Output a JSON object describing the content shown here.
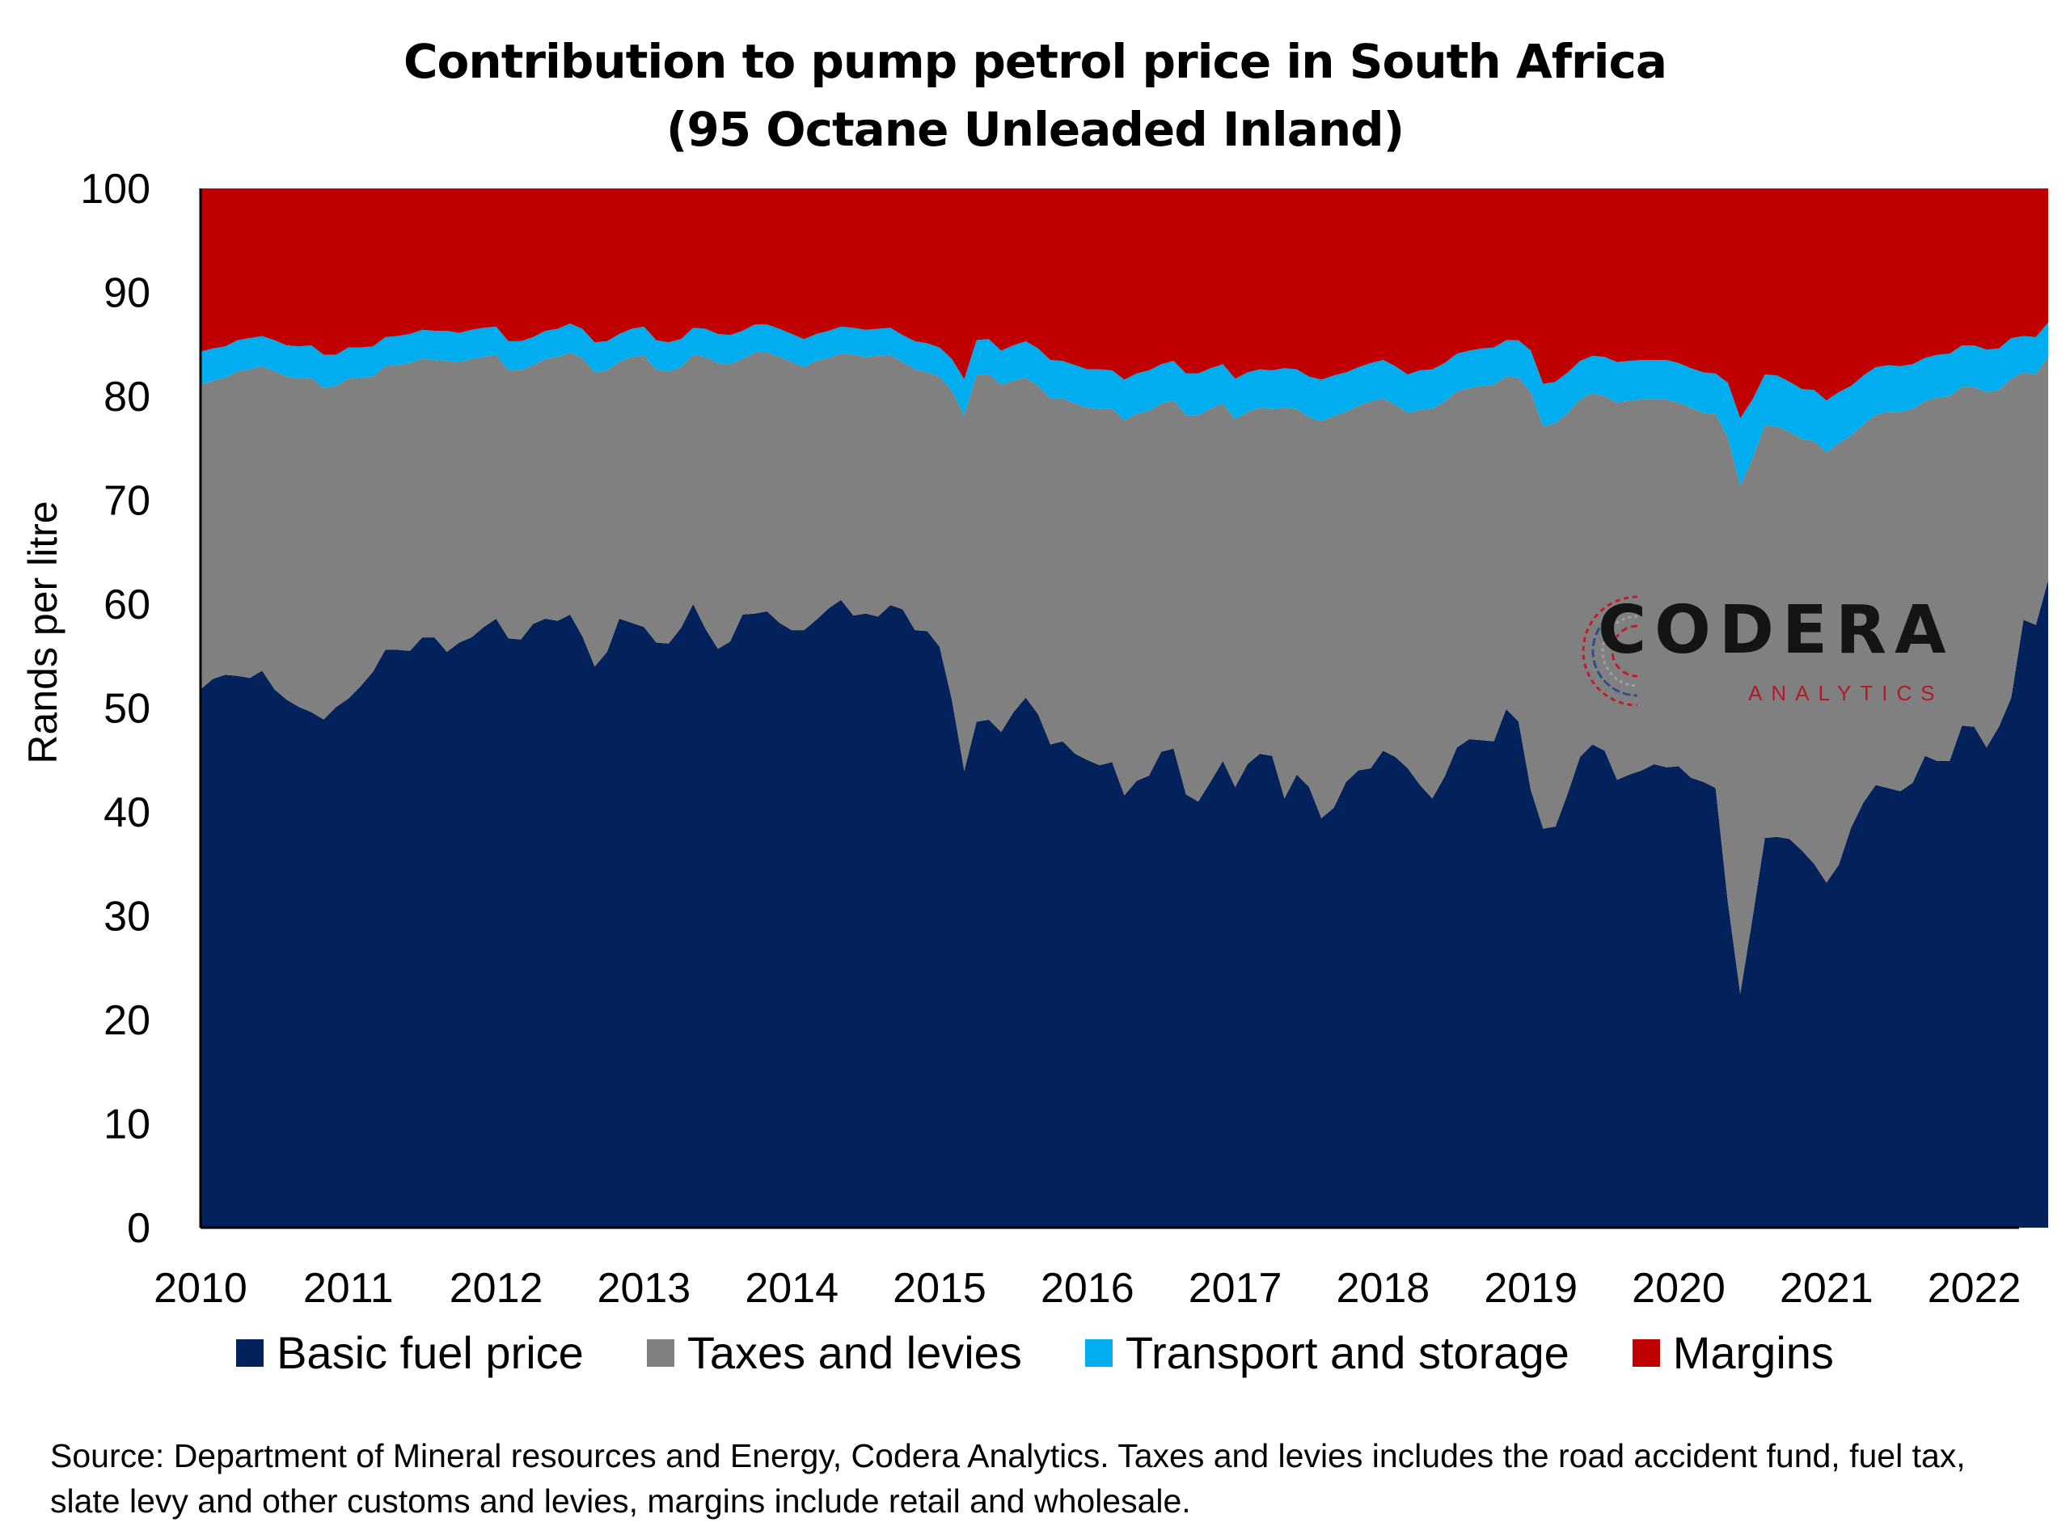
{
  "chart_data": {
    "type": "area",
    "title": "Contribution to pump petrol price in South Africa",
    "subtitle": "(95 Octane Unleaded Inland)",
    "ylabel": "Rands per litre",
    "xlabel": "",
    "ylim": [
      0,
      100
    ],
    "yticks": [
      "0",
      "10",
      "20",
      "30",
      "40",
      "50",
      "60",
      "70",
      "80",
      "90",
      "100"
    ],
    "xticks": [
      "2010",
      "2011",
      "2012",
      "2013",
      "2014",
      "2015",
      "2016",
      "2017",
      "2018",
      "2019",
      "2020",
      "2021",
      "2022"
    ],
    "x_start": 2010,
    "x_step_months": 1,
    "stacked": true,
    "stacked_as_percent": true,
    "legend_position": "bottom",
    "grid": false,
    "series": [
      {
        "name": "Basic fuel price",
        "color": "#03215a",
        "values": [
          51.8,
          52.8,
          53.2,
          53.1,
          52.9,
          53.6,
          51.8,
          50.8,
          50.1,
          49.6,
          48.9,
          50.1,
          50.9,
          52.1,
          53.5,
          55.6,
          55.6,
          55.5,
          56.8,
          56.8,
          55.4,
          56.3,
          56.8,
          57.8,
          58.6,
          56.7,
          56.6,
          58.1,
          58.6,
          58.4,
          59.0,
          56.9,
          54.0,
          55.4,
          58.6,
          58.2,
          57.8,
          56.3,
          56.2,
          57.7,
          60.0,
          57.6,
          55.7,
          56.4,
          59.0,
          59.1,
          59.3,
          58.2,
          57.5,
          57.5,
          58.5,
          59.6,
          60.4,
          58.9,
          59.1,
          58.8,
          59.9,
          59.5,
          57.5,
          57.4,
          55.9,
          50.8,
          42.9,
          47.7,
          47.9,
          47.7,
          49.6,
          51.0,
          49.4,
          46.5,
          46.8,
          45.6,
          45.0,
          44.5,
          44.8,
          41.6,
          43.0,
          43.5,
          45.8,
          46.1,
          41.7,
          41.0,
          42.9,
          44.9,
          42.4,
          44.6,
          45.6,
          45.4,
          41.3,
          43.6,
          42.4,
          39.4,
          40.4,
          42.9,
          44.0,
          44.2,
          45.9,
          45.3,
          44.2,
          42.6,
          41.3,
          43.4,
          46.2,
          47.0,
          46.9,
          46.8,
          49.9,
          48.7,
          42.1,
          38.4,
          38.6,
          41.8,
          45.3,
          46.5,
          45.9,
          43.1,
          43.6,
          44.0,
          44.6,
          44.3,
          44.4,
          43.3,
          42.9,
          42.3,
          31.3,
          22.5,
          29.8,
          37.5,
          37.6,
          37.4,
          36.3,
          35.0,
          33.2,
          34.9,
          38.5,
          40.9,
          42.6,
          42.3,
          42.0,
          42.8,
          45.4,
          44.9,
          44.9,
          48.3,
          48.2,
          46.2,
          48.2,
          51.0,
          58.5,
          58.0,
          62.3
        ]
      },
      {
        "name": "Taxes and levies",
        "color": "#808080",
        "values": [
          29.3,
          28.7,
          28.6,
          29.3,
          29.7,
          29.3,
          30.6,
          31.1,
          31.6,
          32.2,
          31.9,
          30.9,
          30.8,
          29.7,
          28.4,
          27.3,
          27.4,
          27.7,
          26.8,
          26.7,
          28.0,
          27.0,
          26.8,
          26.0,
          25.4,
          25.8,
          25.9,
          24.9,
          25.0,
          25.4,
          25.2,
          26.8,
          28.3,
          27.1,
          24.7,
          25.6,
          26.1,
          26.3,
          26.2,
          25.1,
          24.0,
          26.2,
          27.5,
          26.7,
          24.6,
          25.1,
          24.9,
          25.6,
          25.8,
          25.3,
          24.9,
          24.1,
          23.7,
          25.1,
          24.7,
          25.1,
          24.1,
          23.8,
          25.1,
          24.9,
          26.0,
          29.7,
          33.4,
          32.7,
          32.6,
          33.4,
          31.9,
          30.8,
          31.6,
          33.3,
          33.0,
          33.7,
          33.9,
          34.3,
          34.0,
          36.1,
          35.3,
          35.1,
          33.5,
          33.5,
          36.5,
          37.2,
          35.9,
          34.4,
          35.4,
          33.9,
          33.3,
          33.4,
          37.6,
          35.2,
          35.6,
          38.2,
          37.7,
          35.6,
          35.1,
          35.3,
          33.9,
          33.9,
          34.2,
          36.1,
          37.5,
          36.1,
          34.3,
          33.8,
          34.1,
          34.3,
          32.0,
          33.1,
          38.3,
          38.7,
          38.8,
          36.6,
          34.4,
          33.8,
          34.1,
          36.3,
          36.0,
          35.7,
          35.1,
          35.4,
          35.0,
          35.6,
          35.5,
          36.0,
          44.7,
          48.9,
          44.2,
          39.7,
          39.5,
          39.2,
          39.6,
          40.7,
          41.4,
          40.6,
          37.7,
          36.4,
          35.6,
          36.2,
          36.5,
          36.0,
          34.1,
          35.0,
          35.1,
          32.6,
          32.7,
          34.2,
          32.4,
          30.7,
          23.8,
          24.1,
          21.5
        ]
      },
      {
        "name": "Transport and storage",
        "color": "#00aeef",
        "values": [
          3.2,
          3.1,
          3.0,
          3.0,
          3.0,
          2.9,
          3.0,
          3.0,
          3.1,
          3.1,
          3.2,
          3.0,
          3.0,
          2.9,
          2.9,
          2.8,
          2.8,
          2.8,
          2.8,
          2.8,
          2.9,
          2.8,
          2.8,
          2.8,
          2.7,
          2.8,
          2.8,
          2.7,
          2.7,
          2.7,
          2.8,
          2.8,
          2.9,
          2.8,
          2.7,
          2.7,
          2.8,
          2.8,
          2.8,
          2.7,
          2.6,
          2.7,
          2.8,
          2.8,
          2.7,
          2.7,
          2.7,
          2.7,
          2.7,
          2.7,
          2.6,
          2.6,
          2.6,
          2.6,
          2.6,
          2.6,
          2.6,
          2.6,
          2.7,
          2.8,
          2.8,
          3.1,
          3.4,
          3.3,
          3.3,
          3.3,
          3.4,
          3.5,
          3.6,
          3.7,
          3.6,
          3.7,
          3.7,
          3.8,
          3.7,
          3.9,
          3.9,
          3.9,
          3.8,
          3.8,
          4.0,
          4.0,
          3.9,
          3.8,
          3.9,
          3.8,
          3.7,
          3.7,
          3.8,
          3.8,
          3.9,
          4.0,
          3.9,
          3.8,
          3.7,
          3.7,
          3.7,
          3.7,
          3.7,
          3.8,
          3.8,
          3.7,
          3.6,
          3.6,
          3.6,
          3.6,
          3.5,
          3.6,
          4.0,
          4.1,
          4.0,
          3.9,
          3.7,
          3.6,
          3.8,
          3.9,
          3.8,
          3.8,
          3.8,
          3.8,
          3.8,
          3.8,
          3.9,
          3.9,
          5.3,
          6.5,
          5.7,
          4.9,
          4.9,
          4.8,
          4.8,
          4.9,
          5.0,
          4.9,
          4.8,
          4.7,
          4.6,
          4.5,
          4.4,
          4.3,
          4.2,
          4.1,
          4.1,
          4.0,
          4.0,
          4.1,
          4.0,
          3.9,
          3.5,
          3.6,
          3.3
        ]
      },
      {
        "name": "Margins",
        "color": "#c00000",
        "values": [
          15.7,
          15.4,
          15.2,
          14.6,
          14.4,
          14.2,
          14.6,
          15.1,
          15.2,
          15.1,
          16.0,
          16.0,
          15.3,
          15.3,
          15.2,
          14.3,
          14.2,
          14.0,
          13.6,
          13.7,
          13.7,
          13.9,
          13.6,
          13.4,
          13.3,
          14.7,
          14.7,
          14.3,
          13.7,
          13.5,
          13.0,
          13.5,
          14.8,
          14.7,
          14.0,
          13.5,
          13.3,
          14.6,
          14.8,
          14.5,
          13.4,
          13.5,
          14.0,
          14.1,
          13.7,
          13.1,
          13.1,
          13.5,
          14.0,
          14.5,
          14.0,
          13.7,
          13.3,
          13.4,
          13.6,
          13.5,
          13.4,
          14.1,
          14.7,
          14.9,
          15.3,
          16.4,
          17.9,
          14.3,
          14.2,
          15.6,
          15.1,
          14.7,
          15.4,
          16.5,
          16.6,
          17.0,
          17.4,
          17.4,
          17.5,
          18.4,
          17.8,
          17.5,
          16.9,
          16.6,
          17.8,
          17.8,
          17.3,
          16.9,
          18.3,
          17.7,
          17.4,
          17.5,
          17.3,
          17.4,
          18.1,
          18.4,
          18.0,
          17.7,
          17.2,
          16.8,
          16.5,
          17.1,
          17.9,
          17.5,
          17.4,
          16.8,
          15.9,
          15.6,
          15.4,
          15.3,
          14.6,
          14.6,
          15.6,
          18.8,
          18.6,
          17.7,
          16.6,
          16.1,
          16.2,
          16.7,
          16.6,
          16.5,
          16.5,
          16.5,
          16.8,
          17.3,
          17.7,
          17.8,
          18.7,
          22.1,
          20.3,
          17.9,
          18.0,
          18.6,
          19.3,
          19.4,
          20.4,
          19.6,
          19.0,
          18.0,
          17.2,
          17.0,
          17.1,
          16.9,
          16.3,
          16.0,
          15.9,
          15.1,
          15.1,
          15.5,
          15.4,
          14.4,
          14.2,
          14.3,
          12.9
        ]
      }
    ],
    "note": "Source: Department of Mineral resources and Energy, Codera Analytics. Taxes and levies includes the road accident fund, fuel tax, slate levy and other customs and levies, margins include retail and wholesale."
  },
  "logo": {
    "name": "CODERA",
    "sub": "ANALYTICS"
  },
  "colors": {
    "accent_red": "#c00000",
    "navy": "#03215a"
  }
}
